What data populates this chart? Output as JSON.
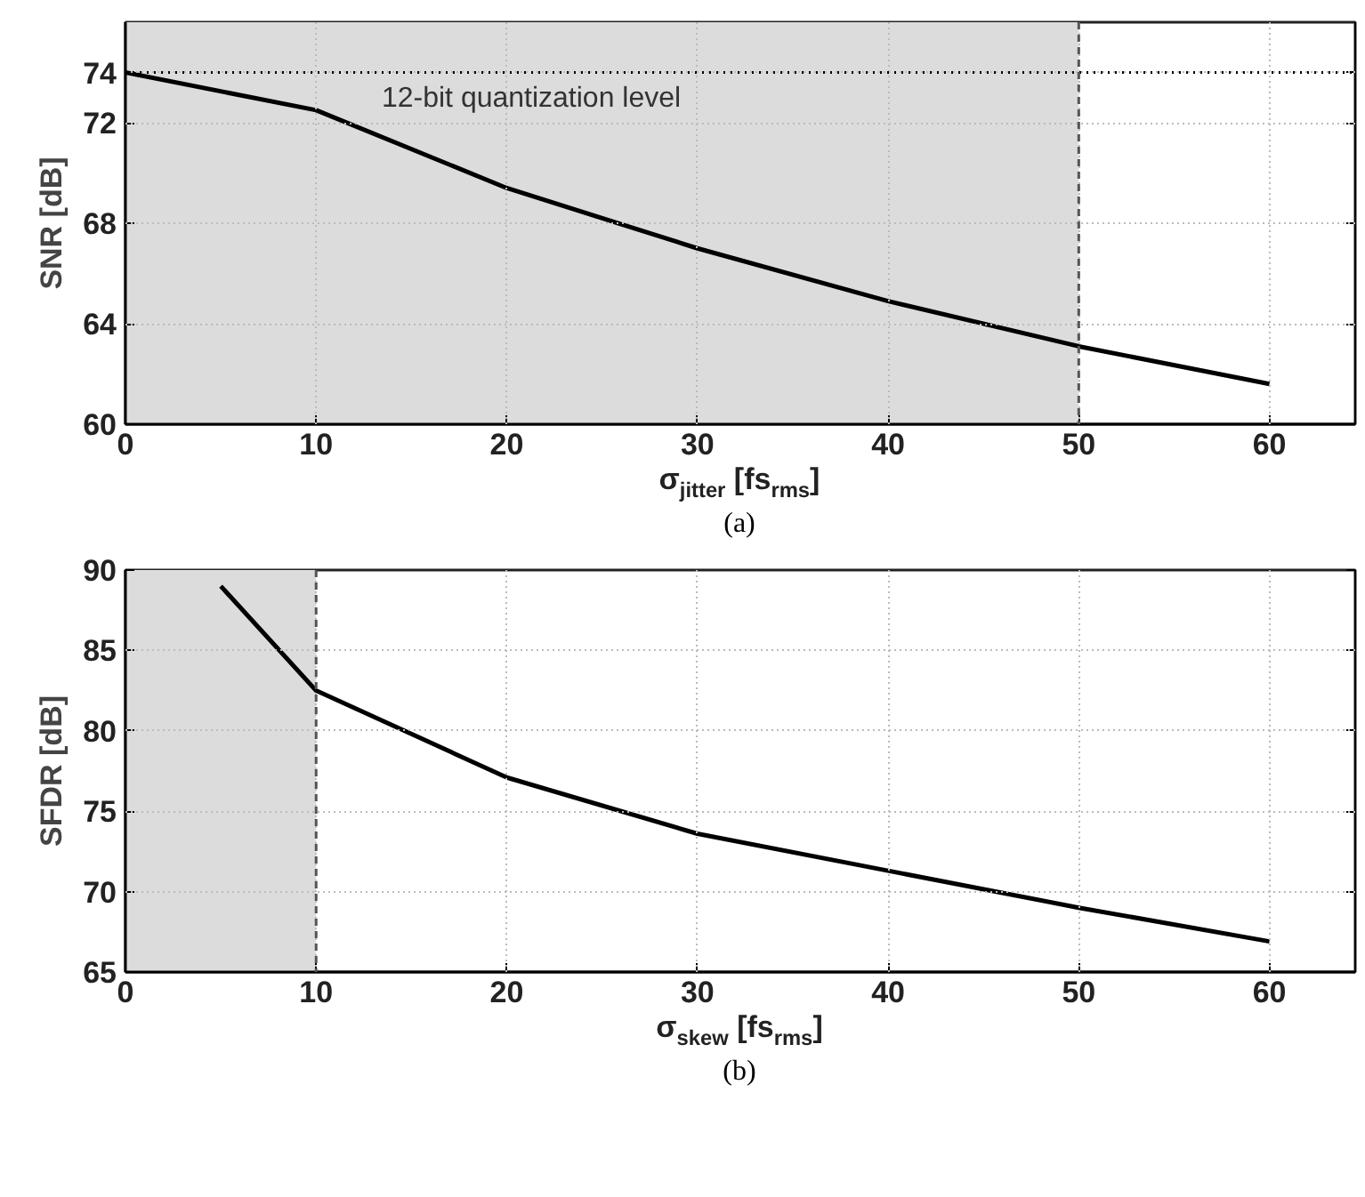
{
  "chart_data": [
    {
      "type": "line",
      "xlabel": "σ$_{jitter}$ [fs$_{rms}$]",
      "ylabel": "SNR [dB]",
      "x": [
        0,
        10,
        20,
        30,
        40,
        50,
        60
      ],
      "series": [
        {
          "color": "#000000",
          "values": [
            74.0,
            72.5,
            69.4,
            67.0,
            64.9,
            63.1,
            61.6
          ]
        }
      ],
      "xlim": [
        0,
        64.5
      ],
      "ylim": [
        60,
        76
      ],
      "xticks": [
        0,
        10,
        20,
        30,
        40,
        50,
        60
      ],
      "yticks": [
        60,
        64,
        68,
        72,
        74
      ],
      "grid": true,
      "line_style": "solid",
      "bands": [
        {
          "axis": "x",
          "from": 0,
          "to": 50,
          "color": "#dcdcdc"
        }
      ],
      "ref_lines": [
        {
          "axis": "y",
          "value": 74,
          "label": "12-bit quantization level",
          "line_style": "dotted",
          "color": "#000000"
        },
        {
          "axis": "x",
          "value": 50,
          "line_style": "dashed",
          "color": "#555555"
        }
      ],
      "annotations": [
        "(a)"
      ]
    },
    {
      "type": "line",
      "xlabel": "σ$_{skew}$ [fs$_{rms}$]",
      "ylabel": "SFDR [dB]",
      "x": [
        5,
        10,
        20,
        30,
        40,
        50,
        60
      ],
      "series": [
        {
          "color": "#000000",
          "values": [
            89.0,
            82.5,
            77.1,
            73.6,
            71.3,
            69.0,
            66.9
          ]
        }
      ],
      "xlim": [
        0,
        64.5
      ],
      "ylim": [
        65,
        90
      ],
      "xticks": [
        0,
        10,
        20,
        30,
        40,
        50,
        60
      ],
      "yticks": [
        65,
        70,
        75,
        80,
        85,
        90
      ],
      "grid": true,
      "line_style": "solid",
      "bands": [
        {
          "axis": "x",
          "from": 0,
          "to": 10,
          "color": "#dcdcdc"
        }
      ],
      "ref_lines": [
        {
          "axis": "x",
          "value": 10,
          "line_style": "dashed",
          "color": "#555555"
        }
      ],
      "annotations": [
        "(b)"
      ]
    }
  ]
}
